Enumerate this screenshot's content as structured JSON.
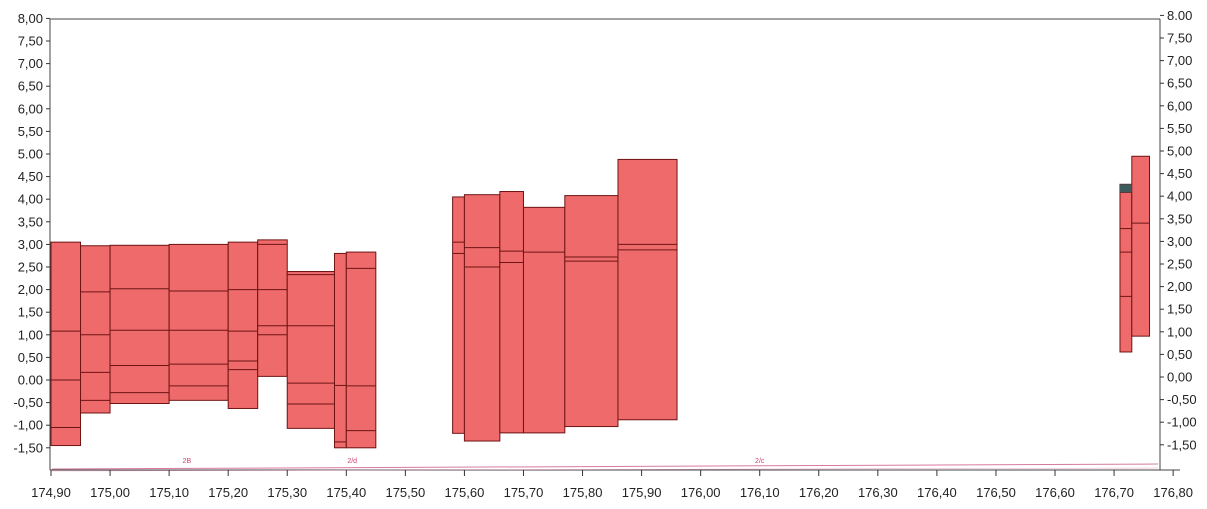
{
  "chart_data": {
    "type": "bar",
    "title": "",
    "xlabel": "",
    "ylabel": "",
    "xlim": [
      174.9,
      176.8
    ],
    "ylim": [
      -1.75,
      8.0
    ],
    "x_ticks": [
      "174,90",
      "175,00",
      "175,10",
      "175,20",
      "175,30",
      "175,40",
      "175,50",
      "175,60",
      "175,70",
      "175,80",
      "175,90",
      "176,00",
      "176,10",
      "176,20",
      "176,30",
      "176,40",
      "176,50",
      "176,60",
      "176,70",
      "176,80"
    ],
    "y_ticks_left": [
      "8,00",
      "7,50",
      "7,00",
      "6,50",
      "6,00",
      "5,50",
      "5.00",
      "4,50",
      "4,00",
      "3,50",
      "3,00",
      "2,50",
      "2,00",
      "1,50",
      "1,00",
      "0,50",
      "0.00",
      "-0,50",
      "-1,00",
      "-1,50"
    ],
    "y_ticks_right": [
      "8.00",
      "7,50",
      "7,00",
      "6,50",
      "6,00",
      "5,50",
      "5,00",
      "4,50",
      "4,00",
      "3,50",
      "3,00",
      "2,50",
      "2,00",
      "1,50",
      "1,00",
      "0,50",
      "0,00",
      "-0,50",
      "-1,00",
      "-1,50"
    ],
    "colors": {
      "bar_fill": "#ef6a6a",
      "bar_stroke": "#6e1414",
      "marker": "#3f5a5a",
      "zone_line": "#d87aa0",
      "axis": "#333333"
    },
    "columns": [
      {
        "x0": 174.9,
        "x1": 174.95,
        "top": 3.05,
        "bottom": -1.45,
        "breaks": [
          1.08,
          0.0,
          -1.05
        ]
      },
      {
        "x0": 174.95,
        "x1": 175.0,
        "top": 2.97,
        "bottom": -0.73,
        "breaks": [
          1.95,
          1.0,
          0.17,
          -0.45
        ]
      },
      {
        "x0": 175.0,
        "x1": 175.1,
        "top": 2.98,
        "bottom": -0.52,
        "breaks": [
          2.02,
          1.1,
          0.32,
          -0.28
        ]
      },
      {
        "x0": 175.1,
        "x1": 175.2,
        "top": 3.0,
        "bottom": -0.45,
        "breaks": [
          1.97,
          1.1,
          0.35,
          -0.13
        ]
      },
      {
        "x0": 175.2,
        "x1": 175.25,
        "top": 3.05,
        "bottom": -0.63,
        "breaks": [
          2.0,
          1.08,
          0.42,
          0.23
        ]
      },
      {
        "x0": 175.25,
        "x1": 175.3,
        "top": 3.1,
        "bottom": 0.08,
        "breaks": [
          3.0,
          2.0,
          1.2,
          1.0
        ]
      },
      {
        "x0": 175.3,
        "x1": 175.38,
        "top": 2.4,
        "bottom": -1.07,
        "breaks": [
          2.33,
          1.2,
          -0.07,
          -0.53
        ]
      },
      {
        "x0": 175.38,
        "x1": 175.4,
        "top": 2.8,
        "bottom": -1.5,
        "breaks": [
          -0.12,
          -1.37
        ]
      },
      {
        "x0": 175.4,
        "x1": 175.45,
        "top": 2.83,
        "bottom": -1.5,
        "breaks": [
          2.47,
          -0.13,
          -1.12
        ]
      },
      {
        "x0": 175.58,
        "x1": 175.6,
        "top": 4.05,
        "bottom": -1.18,
        "breaks": [
          3.05,
          2.8
        ]
      },
      {
        "x0": 175.6,
        "x1": 175.66,
        "top": 4.1,
        "bottom": -1.35,
        "breaks": [
          2.93,
          2.5
        ]
      },
      {
        "x0": 175.66,
        "x1": 175.7,
        "top": 4.17,
        "bottom": -1.17,
        "breaks": [
          2.85,
          2.6
        ]
      },
      {
        "x0": 175.7,
        "x1": 175.77,
        "top": 3.82,
        "bottom": -1.17,
        "breaks": [
          2.83
        ]
      },
      {
        "x0": 175.77,
        "x1": 175.86,
        "top": 4.08,
        "bottom": -1.03,
        "breaks": [
          2.72,
          2.63
        ]
      },
      {
        "x0": 175.86,
        "x1": 175.96,
        "top": 4.88,
        "bottom": -0.88,
        "breaks": [
          3.0,
          2.88
        ]
      },
      {
        "x0": 176.71,
        "x1": 176.73,
        "top": 4.33,
        "bottom": 0.62,
        "breaks": [
          4.15,
          3.35,
          2.83,
          1.85
        ]
      },
      {
        "x0": 176.73,
        "x1": 176.76,
        "top": 4.95,
        "bottom": 0.97,
        "breaks": [
          3.47
        ]
      }
    ],
    "markers": [
      {
        "x0": 176.71,
        "x1": 176.73,
        "y0": 4.15,
        "y1": 4.33
      }
    ],
    "zone_labels": [
      {
        "text": "2B",
        "x": 175.13
      },
      {
        "text": "2/d",
        "x": 175.41
      },
      {
        "text": "2/c",
        "x": 176.1
      }
    ]
  }
}
